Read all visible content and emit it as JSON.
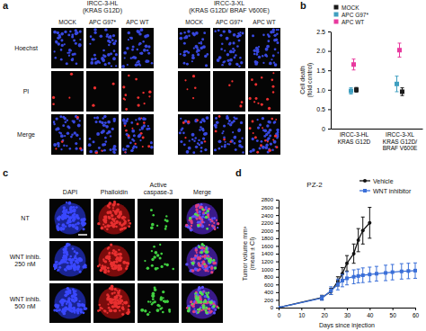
{
  "panels": {
    "labels": [
      "a",
      "b",
      "c",
      "d"
    ],
    "a": {
      "groups": [
        "IRCC-3-HL\n(KRAS G12D)",
        "IRCC-3-XL\n(KRAS G12D/ BRAF V600E)"
      ],
      "columns": [
        "MOCK",
        "APC G97*",
        "APC WT"
      ],
      "rows": [
        "Hoechst",
        "PI",
        "Merge"
      ]
    },
    "c": {
      "columns": [
        "DAPI",
        "Phalloidin",
        "Active\ncaspase-3",
        "Merge"
      ],
      "rows": [
        "NT",
        "WNT inhib.\n250 nM",
        "WNT inhib.\n500 nM"
      ]
    }
  },
  "chart_data": [
    {
      "type": "scatter",
      "ylabel": "Cell death\n(fold control)",
      "categories": [
        "IRCC-3-HL\nKRAS G12D",
        "IRCC-3-XL\nKRAS G12D/\nBRAF V600E"
      ],
      "ylim": [
        0,
        2.5
      ],
      "yticks": [
        0,
        0.5,
        {
          "value": 1,
          "label": "1.0"
        },
        1.5,
        {
          "value": 2,
          "label": "2.0"
        },
        2.5
      ],
      "legend": "top-left",
      "series": [
        {
          "name": "MOCK",
          "color": "#1a1a1a",
          "marker": "square",
          "values": [
            1.0,
            0.95
          ],
          "errors": [
            0.06,
            0.1
          ]
        },
        {
          "name": "APC G97*",
          "color": "#3f9fc0",
          "marker": "square",
          "values": [
            0.97,
            1.15
          ],
          "errors": [
            0.08,
            0.2
          ]
        },
        {
          "name": "APC WT",
          "color": "#e8399e",
          "marker": "square",
          "values": [
            1.65,
            2.02
          ],
          "errors": [
            0.14,
            0.18
          ]
        }
      ]
    },
    {
      "type": "line",
      "title": "PZ-2",
      "xlabel": "Days since injection",
      "ylabel": "Tumor volume mm³\n(mean ± CI)",
      "xlim": [
        0,
        60
      ],
      "xticks": [
        0,
        10,
        20,
        30,
        40,
        50,
        60
      ],
      "ylim": [
        0,
        2800
      ],
      "yticks": [
        0,
        200,
        400,
        600,
        800,
        1000,
        1200,
        1400,
        1600,
        1800,
        2000,
        2200,
        2400,
        2600,
        2800
      ],
      "legend": "top-right",
      "series": [
        {
          "name": "Vehicle",
          "color": "#111111",
          "marker": "circle",
          "x": [
            0,
            19,
            23,
            26,
            28,
            30,
            33,
            35,
            37,
            40
          ],
          "values": [
            0,
            260,
            420,
            680,
            880,
            1150,
            1400,
            1750,
            2000,
            2200
          ],
          "errors": [
            0,
            60,
            80,
            120,
            160,
            200,
            250,
            300,
            350,
            400
          ]
        },
        {
          "name": "WNT inhibitor",
          "color": "#3a6fd8",
          "marker": "square",
          "x": [
            0,
            19,
            23,
            26,
            28,
            30,
            33,
            35,
            37,
            40,
            43,
            47,
            50,
            54,
            57,
            60
          ],
          "values": [
            0,
            250,
            440,
            600,
            700,
            760,
            800,
            820,
            840,
            860,
            880,
            900,
            920,
            940,
            950,
            960
          ],
          "errors": [
            0,
            60,
            100,
            140,
            160,
            170,
            180,
            180,
            190,
            190,
            190,
            200,
            200,
            200,
            200,
            200
          ]
        }
      ]
    }
  ]
}
